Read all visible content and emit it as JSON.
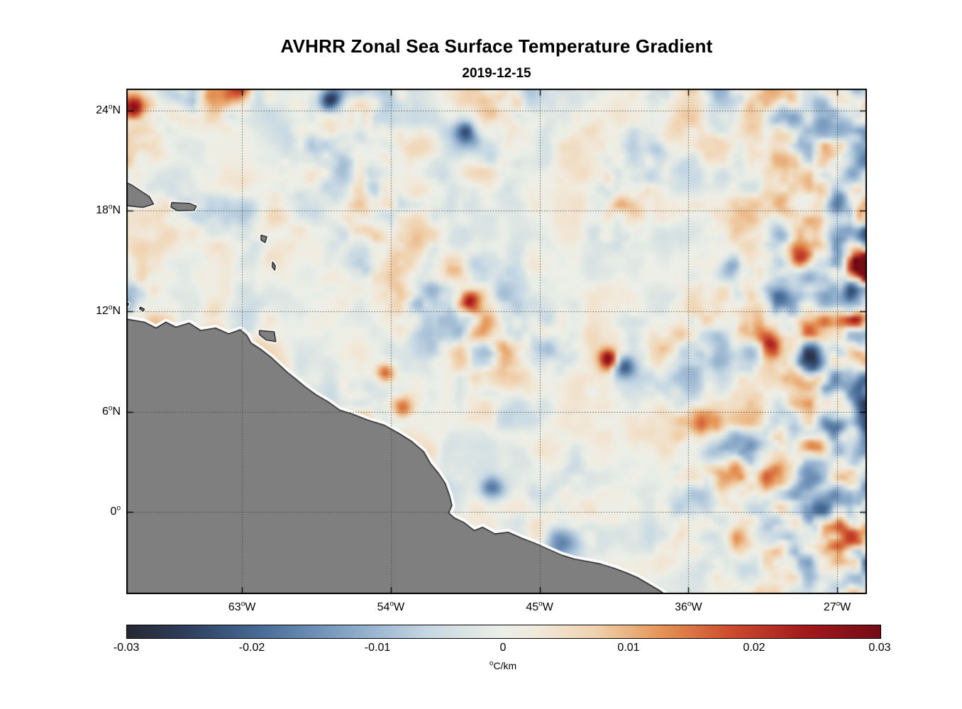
{
  "page": {
    "background": "#ffffff"
  },
  "chart_data": {
    "type": "heatmap",
    "title": "AVHRR Zonal Sea Surface Temperature Gradient",
    "subtitle": "2019-12-15",
    "deg_symbol": "o",
    "colorbar_label": {
      "sup": "o",
      "text": "C/km"
    },
    "extent": {
      "lon_west_degW": 70.0,
      "lon_east_degW": 25.2,
      "lat_north": 25.3,
      "lat_south": -4.9
    },
    "x_ticks": [
      {
        "num": "63",
        "hem": "W",
        "lonW": 63
      },
      {
        "num": "54",
        "hem": "W",
        "lonW": 54
      },
      {
        "num": "45",
        "hem": "W",
        "lonW": 45
      },
      {
        "num": "36",
        "hem": "W",
        "lonW": 36
      },
      {
        "num": "27",
        "hem": "W",
        "lonW": 27
      }
    ],
    "y_ticks": [
      {
        "num": "24",
        "hem": "N",
        "lat": 24
      },
      {
        "num": "18",
        "hem": "N",
        "lat": 18
      },
      {
        "num": "12",
        "hem": "N",
        "lat": 12
      },
      {
        "num": "6",
        "hem": "N",
        "lat": 6
      },
      {
        "num": "0",
        "hem": "",
        "lat": 0
      }
    ],
    "grid": {
      "style": "dotted",
      "color": "#3c3c3c"
    },
    "frame_color": "#000000",
    "colorbar": {
      "vmin": -0.03,
      "vmax": 0.03,
      "tick_labels": [
        "-0.03",
        "-0.02",
        "-0.01",
        "0",
        "0.01",
        "0.02",
        "0.03"
      ],
      "border_color": "#000000"
    },
    "colormap_stops": [
      [
        0.0,
        38,
        40,
        50
      ],
      [
        0.08,
        47,
        63,
        94
      ],
      [
        0.18,
        72,
        109,
        153
      ],
      [
        0.3,
        138,
        169,
        201
      ],
      [
        0.4,
        198,
        216,
        228
      ],
      [
        0.46,
        222,
        230,
        227
      ],
      [
        0.5,
        236,
        239,
        232
      ],
      [
        0.54,
        241,
        234,
        221
      ],
      [
        0.62,
        240,
        211,
        176
      ],
      [
        0.71,
        229,
        148,
        84
      ],
      [
        0.8,
        205,
        77,
        47
      ],
      [
        0.9,
        163,
        26,
        28
      ],
      [
        1.0,
        116,
        12,
        22
      ]
    ],
    "field": {
      "seed": 20191215,
      "octaves": [
        [
          26,
          18,
          1.0
        ],
        [
          52,
          36,
          0.55
        ],
        [
          90,
          62,
          0.28
        ]
      ],
      "amp_grid": [
        13,
        9
      ],
      "amp_base": 0.12,
      "amp_scale": 0.5,
      "right_band": {
        "start": 0.72,
        "strength": 0.55
      }
    },
    "notable_features": [
      {
        "lonW": 69.6,
        "lat": 24.2,
        "r": 0.55,
        "v": 0.95
      },
      {
        "lonW": 63.2,
        "lat": 25.0,
        "r": 0.5,
        "v": 0.6
      },
      {
        "lonW": 57.6,
        "lat": 24.6,
        "r": 0.5,
        "v": -0.8
      },
      {
        "lonW": 49.4,
        "lat": 22.7,
        "r": 0.5,
        "v": -0.65
      },
      {
        "lonW": 37.8,
        "lat": 21.6,
        "r": 0.5,
        "v": -0.5
      },
      {
        "lonW": 25.4,
        "lat": 14.8,
        "r": 0.5,
        "v": 1.0
      },
      {
        "lonW": 30.5,
        "lat": 12.9,
        "r": 0.65,
        "v": -0.85
      },
      {
        "lonW": 29.3,
        "lat": 15.2,
        "r": 0.5,
        "v": 0.75
      },
      {
        "lonW": 33.5,
        "lat": 14.5,
        "r": 0.6,
        "v": -0.6
      },
      {
        "lonW": 49.2,
        "lat": 12.6,
        "r": 0.45,
        "v": 0.7
      },
      {
        "lonW": 40.8,
        "lat": 9.1,
        "r": 0.4,
        "v": 0.95
      },
      {
        "lonW": 39.9,
        "lat": 8.7,
        "r": 0.45,
        "v": -0.6
      },
      {
        "lonW": 54.3,
        "lat": 8.3,
        "r": 0.45,
        "v": 0.65
      },
      {
        "lonW": 53.3,
        "lat": 6.3,
        "r": 0.5,
        "v": 0.6
      },
      {
        "lonW": 35.3,
        "lat": 5.2,
        "r": 0.8,
        "v": 0.6
      },
      {
        "lonW": 27.1,
        "lat": 5.0,
        "r": 0.55,
        "v": -0.75
      },
      {
        "lonW": 28.6,
        "lat": 3.9,
        "r": 0.5,
        "v": 0.65
      },
      {
        "lonW": 28.6,
        "lat": 8.8,
        "r": 0.55,
        "v": -0.7
      },
      {
        "lonW": 25.6,
        "lat": 11.5,
        "r": 0.45,
        "v": 0.8
      },
      {
        "lonW": 31.0,
        "lat": 10.2,
        "r": 0.5,
        "v": 0.6
      },
      {
        "lonW": 47.9,
        "lat": 1.4,
        "r": 0.5,
        "v": -0.55
      },
      {
        "lonW": 43.8,
        "lat": -1.6,
        "r": 0.6,
        "v": -0.5
      },
      {
        "lonW": 32.7,
        "lat": -1.6,
        "r": 0.6,
        "v": 0.5
      }
    ],
    "land": {
      "fill": "#7f7f7f",
      "outline": "#111111",
      "coast_halo": "#ffffff",
      "polygons": {
        "south_america": [
          [
            70.4,
            11.6
          ],
          [
            68.9,
            11.35
          ],
          [
            68.2,
            11.0
          ],
          [
            67.6,
            11.35
          ],
          [
            67.0,
            11.05
          ],
          [
            66.2,
            11.3
          ],
          [
            65.5,
            10.85
          ],
          [
            64.6,
            11.0
          ],
          [
            63.8,
            10.65
          ],
          [
            63.1,
            10.9
          ],
          [
            62.7,
            10.55
          ],
          [
            62.45,
            10.1
          ],
          [
            61.9,
            9.75
          ],
          [
            61.3,
            9.3
          ],
          [
            60.75,
            8.8
          ],
          [
            60.25,
            8.35
          ],
          [
            59.8,
            8.0
          ],
          [
            59.2,
            7.5
          ],
          [
            58.5,
            7.0
          ],
          [
            57.8,
            6.6
          ],
          [
            57.1,
            6.1
          ],
          [
            56.3,
            5.85
          ],
          [
            55.4,
            5.5
          ],
          [
            54.4,
            5.2
          ],
          [
            53.5,
            4.7
          ],
          [
            52.7,
            4.2
          ],
          [
            52.0,
            3.6
          ],
          [
            51.6,
            2.9
          ],
          [
            51.1,
            2.3
          ],
          [
            50.7,
            1.7
          ],
          [
            50.45,
            1.0
          ],
          [
            50.3,
            0.4
          ],
          [
            50.5,
            -0.05
          ],
          [
            50.15,
            -0.35
          ],
          [
            49.6,
            -0.6
          ],
          [
            48.95,
            -1.1
          ],
          [
            48.45,
            -0.9
          ],
          [
            47.7,
            -1.3
          ],
          [
            46.9,
            -1.2
          ],
          [
            46.1,
            -1.55
          ],
          [
            45.3,
            -1.85
          ],
          [
            44.5,
            -2.2
          ],
          [
            43.7,
            -2.55
          ],
          [
            42.9,
            -2.8
          ],
          [
            42.1,
            -2.95
          ],
          [
            41.3,
            -3.1
          ],
          [
            40.5,
            -3.35
          ],
          [
            39.8,
            -3.6
          ],
          [
            39.1,
            -3.9
          ],
          [
            38.4,
            -4.3
          ],
          [
            37.8,
            -4.65
          ],
          [
            37.2,
            -5.05
          ],
          [
            36.7,
            -5.5
          ],
          [
            70.6,
            -5.5
          ]
        ],
        "hispaniola": [
          [
            70.5,
            19.95
          ],
          [
            69.6,
            19.5
          ],
          [
            68.6,
            18.85
          ],
          [
            68.35,
            18.4
          ],
          [
            69.0,
            18.2
          ],
          [
            69.9,
            18.3
          ],
          [
            70.5,
            18.55
          ]
        ],
        "puerto_rico": [
          [
            67.25,
            18.5
          ],
          [
            66.2,
            18.45
          ],
          [
            65.75,
            18.28
          ],
          [
            65.9,
            18.03
          ],
          [
            66.9,
            18.0
          ],
          [
            67.3,
            18.22
          ]
        ],
        "trinidad": [
          [
            61.95,
            10.85
          ],
          [
            61.05,
            10.78
          ],
          [
            60.95,
            10.18
          ],
          [
            61.55,
            10.28
          ],
          [
            61.95,
            10.6
          ]
        ],
        "guadeloupe": [
          [
            61.85,
            16.55
          ],
          [
            61.5,
            16.45
          ],
          [
            61.6,
            16.1
          ],
          [
            61.85,
            16.25
          ]
        ],
        "martinique": [
          [
            61.15,
            14.95
          ],
          [
            60.98,
            14.72
          ],
          [
            61.02,
            14.45
          ],
          [
            61.18,
            14.65
          ]
        ],
        "aruba": [
          [
            70.05,
            12.55
          ],
          [
            69.85,
            12.45
          ],
          [
            69.92,
            12.32
          ],
          [
            70.08,
            12.42
          ]
        ],
        "curacao": [
          [
            69.15,
            12.25
          ],
          [
            68.9,
            12.12
          ],
          [
            68.98,
            12.0
          ],
          [
            69.2,
            12.15
          ]
        ]
      }
    }
  }
}
